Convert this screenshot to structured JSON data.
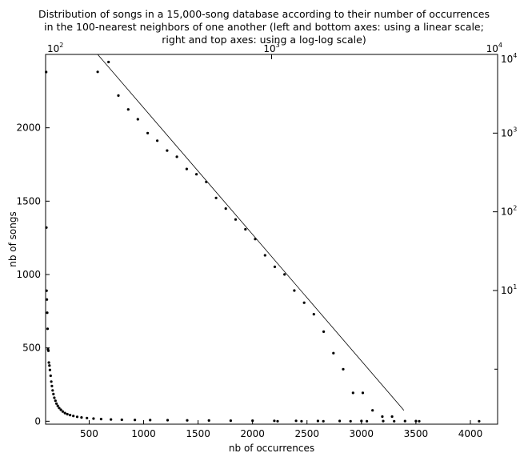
{
  "chart_data": {
    "type": "scatter",
    "title_lines": [
      "Distribution of songs in a 15,000-song database according to their number of occurrences",
      "in the 100-nearest neighbors of one another (left and bottom axes: using a linear scale;",
      "right and top axes: using a log-log scale)"
    ],
    "xlabel": "nb of occurrences",
    "ylabel": "nb of songs",
    "linear_axes": {
      "xlim": [
        100,
        4250
      ],
      "ylim": [
        -20,
        2500
      ],
      "xticks": [
        500,
        1000,
        1500,
        2000,
        2500,
        3000,
        3500,
        4000
      ],
      "yticks": [
        0,
        500,
        1000,
        1500,
        2000
      ]
    },
    "log_axes": {
      "xlim": [
        100,
        10000
      ],
      "ylim": [
        0.2,
        10000
      ],
      "xticks": [
        {
          "value": 100,
          "base": "10",
          "exp": "2"
        },
        {
          "value": 1000,
          "base": "10",
          "exp": "3"
        },
        {
          "value": 10000,
          "base": "10",
          "exp": "4"
        }
      ],
      "yticks": [
        {
          "value": 10,
          "base": "10",
          "exp": "1"
        },
        {
          "value": 100,
          "base": "10",
          "exp": "2"
        },
        {
          "value": 1000,
          "base": "10",
          "exp": "3"
        },
        {
          "value": 10000,
          "base": "10",
          "exp": "4"
        }
      ],
      "minor_yticks": [
        1
      ]
    },
    "series": [
      {
        "axes": "linear",
        "style": "dots",
        "x": [
          105,
          107,
          109,
          112,
          115,
          118,
          122,
          126,
          130,
          135,
          140,
          146,
          152,
          158,
          165,
          172,
          180,
          190,
          200,
          212,
          225,
          240,
          258,
          278,
          300,
          325,
          355,
          390,
          430,
          480,
          540,
          610,
          700,
          800,
          920,
          1060,
          1220,
          1400,
          1600,
          1800,
          2000,
          2200,
          2400,
          2600,
          2800,
          3000,
          3200,
          3400,
          3500,
          2230,
          2450,
          2650,
          2900,
          3050,
          3300,
          3530,
          4080
        ],
        "y": [
          2380,
          1320,
          890,
          830,
          740,
          630,
          490,
          480,
          400,
          380,
          350,
          310,
          270,
          240,
          210,
          185,
          160,
          140,
          120,
          105,
          90,
          78,
          66,
          56,
          48,
          42,
          36,
          30,
          26,
          22,
          18,
          15,
          12,
          10,
          9,
          8,
          7,
          6,
          5,
          4,
          4,
          3,
          3,
          2,
          2,
          2,
          1,
          1,
          1,
          0,
          0,
          0,
          0,
          0,
          0,
          0,
          0
        ]
      },
      {
        "axes": "log",
        "style": "dots",
        "x": [
          170,
          190,
          210,
          232,
          256,
          283,
          312,
          345,
          381,
          421,
          465,
          514,
          568,
          627,
          693,
          766,
          846,
          935,
          1033,
          1141,
          1260,
          1393,
          1538,
          1700,
          1878,
          2074,
          2292,
          2532,
          2797,
          3090,
          3414,
          3772
        ],
        "y": [
          6000,
          8000,
          3000,
          2000,
          1500,
          1000,
          800,
          600,
          500,
          350,
          300,
          240,
          150,
          110,
          80,
          60,
          45,
          28,
          20,
          16,
          10,
          7,
          5,
          3,
          1.6,
          1,
          0.5,
          0.5,
          0.3,
          0.25,
          0.25,
          0.1
        ]
      },
      {
        "axes": "log",
        "style": "line",
        "x": [
          170,
          3850
        ],
        "y": [
          10000,
          0.3
        ]
      }
    ]
  }
}
